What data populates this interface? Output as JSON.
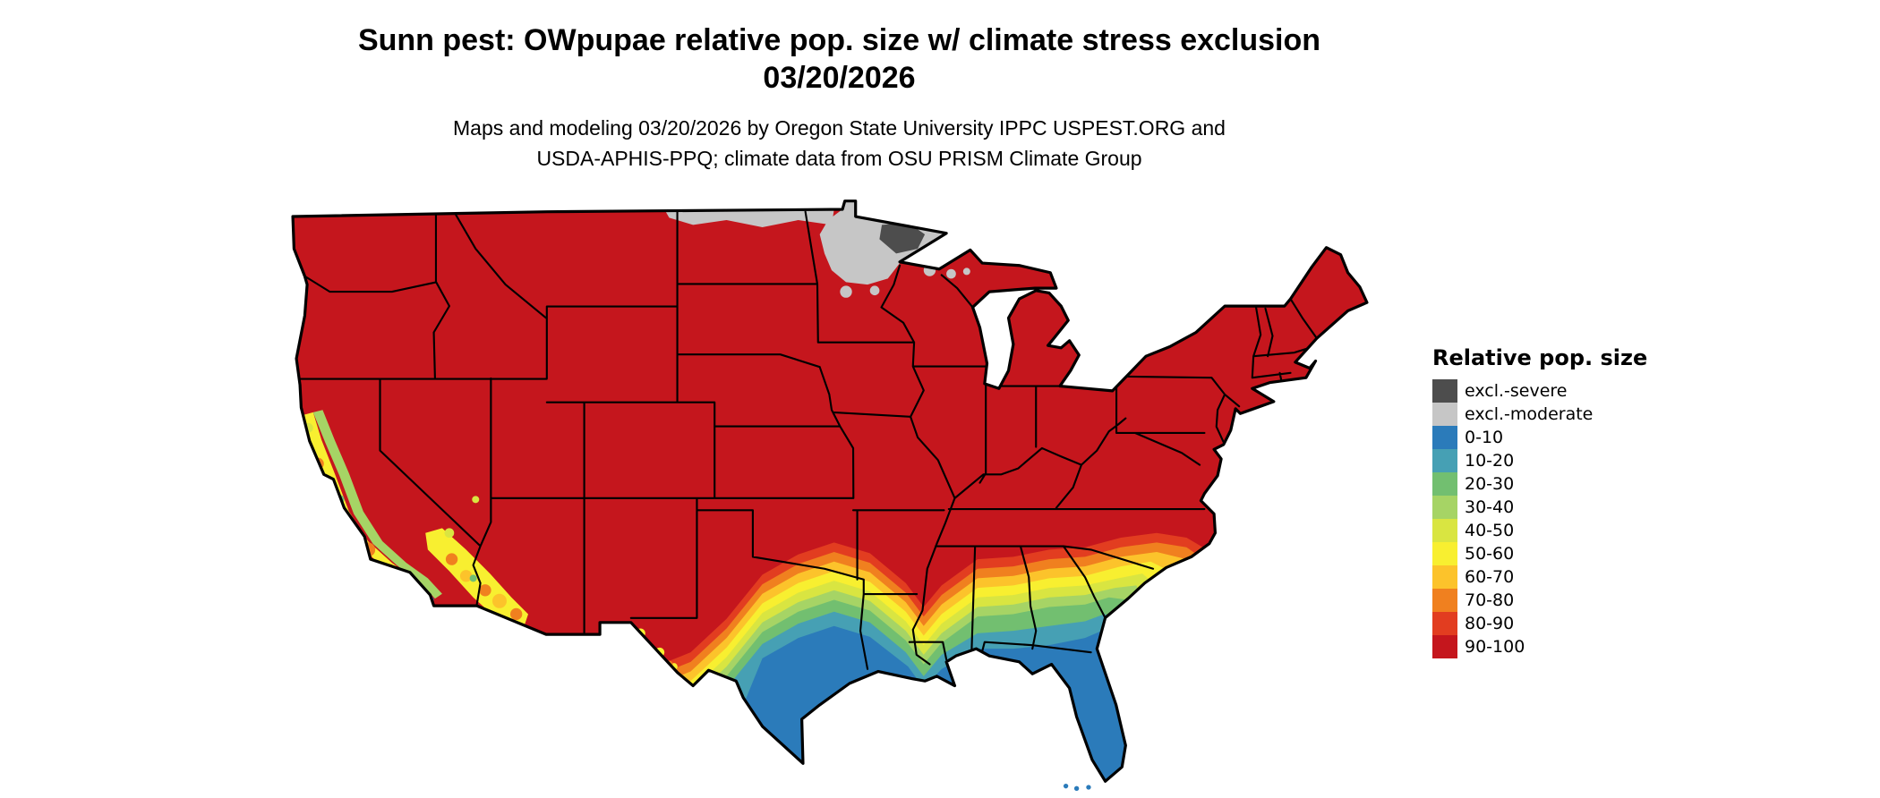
{
  "header": {
    "title_line1": "Sunn pest: OWpupae relative pop. size w/ climate stress exclusion",
    "title_line2": "03/20/2026",
    "subtitle_line1": "Maps and modeling 03/20/2026 by Oregon State University IPPC USPEST.ORG and",
    "subtitle_line2": "USDA-APHIS-PPQ; climate data from OSU PRISM Climate Group"
  },
  "legend": {
    "title": "Relative pop. size",
    "items": [
      {
        "label": "excl.-severe",
        "color": "#4d4d4d"
      },
      {
        "label": "excl.-moderate",
        "color": "#c6c6c6"
      },
      {
        "label": "0-10",
        "color": "#2b7bba"
      },
      {
        "label": "10-20",
        "color": "#46a0b4"
      },
      {
        "label": "20-30",
        "color": "#72bf70"
      },
      {
        "label": "30-40",
        "color": "#a6d465"
      },
      {
        "label": "40-50",
        "color": "#d9e541"
      },
      {
        "label": "50-60",
        "color": "#f8ef30"
      },
      {
        "label": "60-70",
        "color": "#fcc32b"
      },
      {
        "label": "70-80",
        "color": "#f0801f"
      },
      {
        "label": "80-90",
        "color": "#e23d20"
      },
      {
        "label": "90-100",
        "color": "#c5161d"
      }
    ]
  }
}
